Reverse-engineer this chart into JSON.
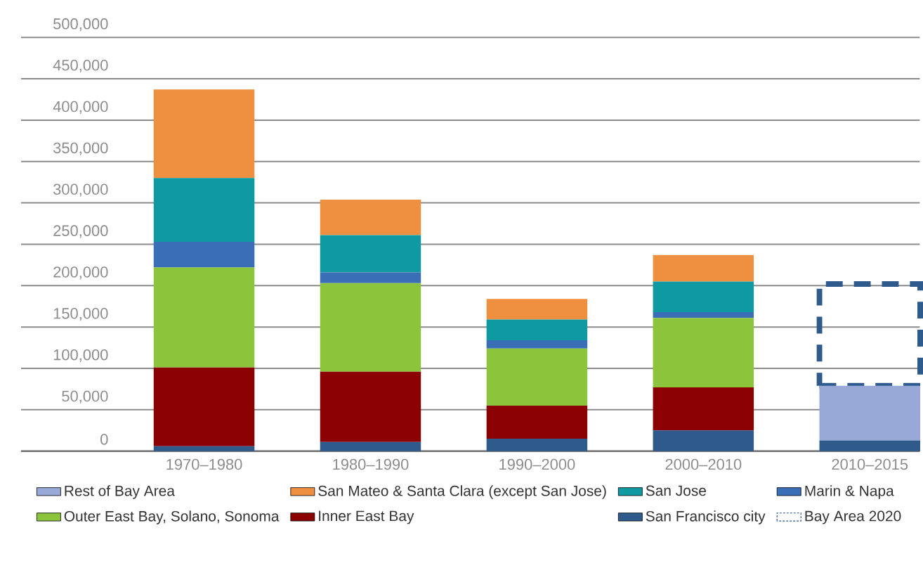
{
  "chart_data": {
    "type": "bar",
    "stacked": true,
    "categories": [
      "1970–1980",
      "1980–1990",
      "1990–2000",
      "2000–2010",
      "2010–2015"
    ],
    "series": [
      {
        "name": "San Francisco city",
        "color": "#2e5a8c",
        "values": [
          6000,
          11000,
          15000,
          25000,
          13000
        ]
      },
      {
        "name": "Inner East Bay",
        "color": "#8b0000",
        "values": [
          95000,
          85000,
          40000,
          52000,
          null
        ]
      },
      {
        "name": "Outer East Bay, Solano, Sonoma",
        "color": "#8cc43c",
        "values": [
          121000,
          107000,
          69000,
          84000,
          null
        ]
      },
      {
        "name": "Marin & Napa",
        "color": "#3a6fb8",
        "values": [
          31000,
          13000,
          10000,
          7000,
          null
        ]
      },
      {
        "name": "San Jose",
        "color": "#0e9aa0",
        "values": [
          77000,
          45000,
          25000,
          37000,
          null
        ]
      },
      {
        "name": "San Mateo & Santa Clara (except San Jose)",
        "color": "#ee9040",
        "values": [
          107000,
          43000,
          25000,
          32000,
          null
        ]
      },
      {
        "name": "Rest of Bay Area",
        "color": "#98a9d8",
        "values": [
          null,
          null,
          null,
          null,
          66000
        ]
      },
      {
        "name": "Bay Area 2020",
        "color": "#2e5a8c",
        "line_style": "dashed",
        "values": [
          null,
          null,
          null,
          null,
          123000
        ]
      }
    ],
    "ylim": [
      0,
      500000
    ],
    "yticks": [
      0,
      {
        "value": 50000,
        "label": "50,000"
      },
      {
        "value": 100000,
        "label": "100,000"
      },
      {
        "value": 150000,
        "label": "150,000"
      },
      {
        "value": 200000,
        "label": "200,000"
      },
      {
        "value": 250000,
        "label": "250,000"
      },
      {
        "value": 300000,
        "label": "300,000"
      },
      {
        "value": 350000,
        "label": "350,000"
      },
      {
        "value": 400000,
        "label": "400,000"
      },
      {
        "value": 450000,
        "label": "450,000"
      },
      {
        "value": 500000,
        "label": "500,000"
      }
    ],
    "grid": "y",
    "legend": "bottom"
  }
}
